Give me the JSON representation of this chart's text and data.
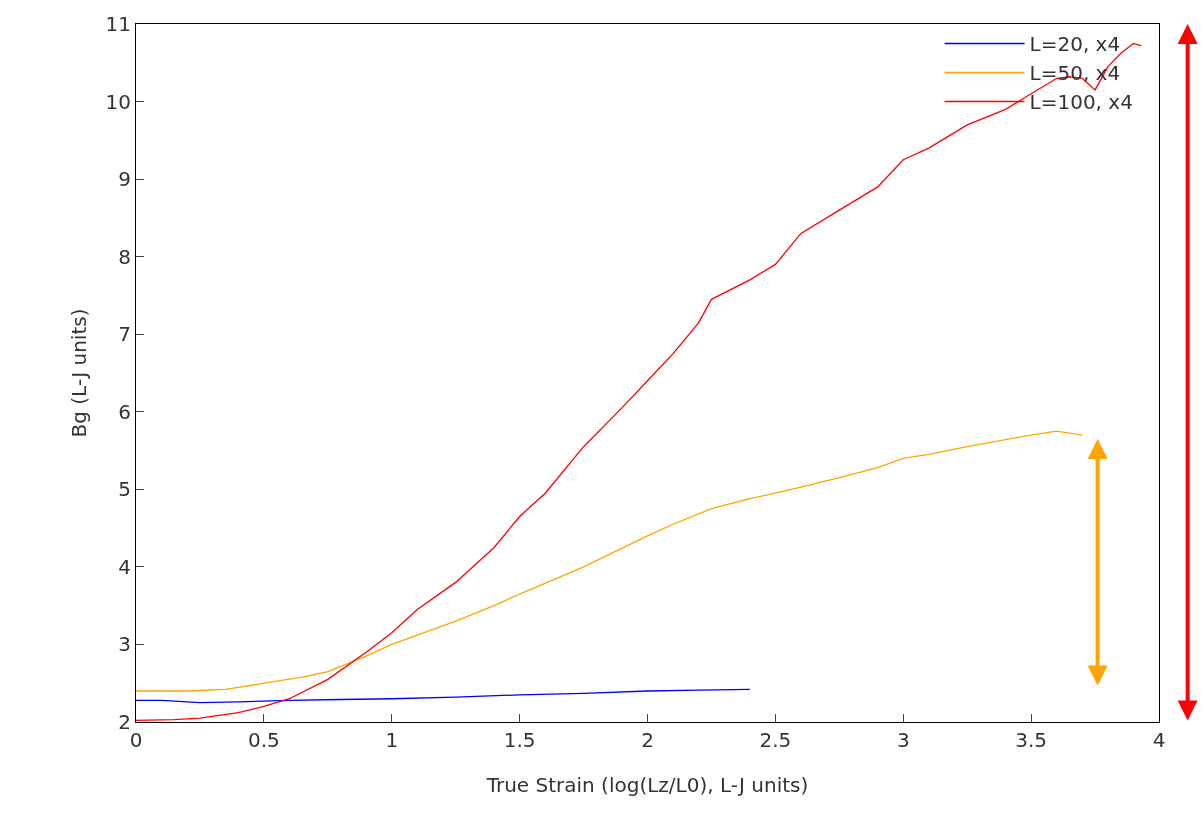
{
  "chart_data": {
    "type": "line",
    "xlabel": "True Strain (log(Lz/L0), L-J units)",
    "ylabel": "Bg (L-J units)",
    "xlim": [
      0,
      4
    ],
    "xticks": [
      0,
      0.5,
      1,
      1.5,
      2,
      2.5,
      3,
      3.5,
      4
    ],
    "ylim": [
      2,
      11
    ],
    "yticks": [
      2,
      3,
      4,
      5,
      6,
      7,
      8,
      9,
      10,
      11
    ],
    "grid": false,
    "legend": "top right",
    "marker": "none",
    "line_style": "solid",
    "series": [
      {
        "name": "L=20, x4",
        "color": "#0000ff",
        "x": [
          0,
          0.1,
          0.25,
          0.4,
          0.6,
          0.8,
          1,
          1.25,
          1.5,
          1.75,
          2,
          2.2,
          2.4
        ],
        "values": [
          2.28,
          2.28,
          2.25,
          2.26,
          2.28,
          2.29,
          2.3,
          2.32,
          2.35,
          2.37,
          2.4,
          2.41,
          2.42
        ]
      },
      {
        "name": "L=50, x4",
        "color": "#ffa500",
        "x": [
          0,
          0.2,
          0.35,
          0.5,
          0.65,
          0.75,
          0.9,
          1,
          1.1,
          1.25,
          1.4,
          1.5,
          1.75,
          2,
          2.1,
          2.25,
          2.4,
          2.5,
          2.6,
          2.75,
          2.9,
          3,
          3.1,
          3.25,
          3.4,
          3.5,
          3.6,
          3.7
        ],
        "values": [
          2.4,
          2.4,
          2.42,
          2.5,
          2.58,
          2.65,
          2.85,
          3.0,
          3.12,
          3.3,
          3.5,
          3.65,
          4.0,
          4.4,
          4.55,
          4.75,
          4.88,
          4.95,
          5.03,
          5.15,
          5.28,
          5.4,
          5.45,
          5.55,
          5.64,
          5.7,
          5.75,
          5.7
        ]
      },
      {
        "name": "L=100, x4",
        "color": "#ff0000",
        "x": [
          0,
          0.15,
          0.25,
          0.4,
          0.5,
          0.6,
          0.75,
          0.9,
          1,
          1.1,
          1.25,
          1.4,
          1.5,
          1.6,
          1.75,
          1.9,
          2,
          2.1,
          2.2,
          2.25,
          2.4,
          2.5,
          2.6,
          2.75,
          2.9,
          3,
          3.1,
          3.25,
          3.4,
          3.5,
          3.6,
          3.65,
          3.7,
          3.75,
          3.8,
          3.85,
          3.9,
          3.93
        ],
        "values": [
          2.02,
          2.03,
          2.05,
          2.12,
          2.2,
          2.3,
          2.55,
          2.9,
          3.15,
          3.45,
          3.8,
          4.25,
          4.65,
          4.95,
          5.55,
          6.05,
          6.4,
          6.75,
          7.15,
          7.45,
          7.7,
          7.9,
          8.3,
          8.6,
          8.9,
          9.25,
          9.4,
          9.7,
          9.9,
          10.1,
          10.3,
          10.32,
          10.3,
          10.15,
          10.45,
          10.62,
          10.75,
          10.72
        ]
      }
    ]
  }
}
